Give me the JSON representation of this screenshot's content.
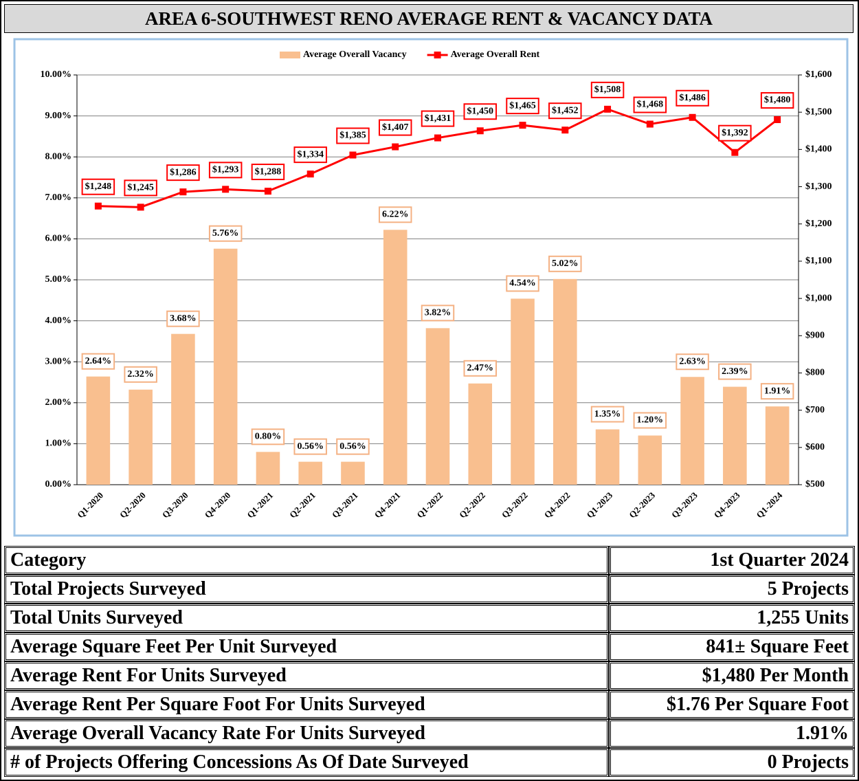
{
  "chart_data": {
    "type": "bar-line",
    "title": "AREA 6-SOUTHWEST RENO AVERAGE RENT & VACANCY DATA",
    "categories": [
      "Q1-2020",
      "Q2-2020",
      "Q3-2020",
      "Q4-2020",
      "Q1-2021",
      "Q2-2021",
      "Q3-2021",
      "Q4-2021",
      "Q1-2022",
      "Q2-2022",
      "Q3-2022",
      "Q4-2022",
      "Q1-2023",
      "Q2-2023",
      "Q3-2023",
      "Q4-2023",
      "Q1-2024"
    ],
    "series": [
      {
        "name": "Average Overall Vacancy",
        "type": "bar",
        "color": "#f9bf8f",
        "label_border": "#f4b183",
        "values": [
          2.64,
          2.32,
          3.68,
          5.76,
          0.8,
          0.56,
          0.56,
          6.22,
          3.82,
          2.47,
          4.54,
          5.02,
          1.35,
          1.2,
          2.63,
          2.39,
          1.91
        ],
        "value_labels": [
          "2.64%",
          "2.32%",
          "3.68%",
          "5.76%",
          "0.80%",
          "0.56%",
          "0.56%",
          "6.22%",
          "3.82%",
          "2.47%",
          "4.54%",
          "5.02%",
          "1.35%",
          "1.20%",
          "2.63%",
          "2.39%",
          "1.91%"
        ]
      },
      {
        "name": "Average Overall Rent",
        "type": "line",
        "axis": "y2",
        "color": "#ff0000",
        "label_border": "#ff0000",
        "values": [
          1248,
          1245,
          1286,
          1293,
          1288,
          1334,
          1385,
          1407,
          1431,
          1450,
          1465,
          1452,
          1508,
          1468,
          1486,
          1392,
          1480
        ],
        "value_labels": [
          "$1,248",
          "$1,245",
          "$1,286",
          "$1,293",
          "$1,288",
          "$1,334",
          "$1,385",
          "$1,407",
          "$1,431",
          "$1,450",
          "$1,465",
          "$1,452",
          "$1,508",
          "$1,468",
          "$1,486",
          "$1,392",
          "$1,480"
        ]
      }
    ],
    "ylim": [
      0,
      10
    ],
    "yticks": [
      {
        "value": 0,
        "label": "0.00%"
      },
      {
        "value": 1,
        "label": "1.00%"
      },
      {
        "value": 2,
        "label": "2.00%"
      },
      {
        "value": 3,
        "label": "3.00%"
      },
      {
        "value": 4,
        "label": "4.00%"
      },
      {
        "value": 5,
        "label": "5.00%"
      },
      {
        "value": 6,
        "label": "6.00%"
      },
      {
        "value": 7,
        "label": "7.00%"
      },
      {
        "value": 8,
        "label": "8.00%"
      },
      {
        "value": 9,
        "label": "9.00%"
      },
      {
        "value": 10,
        "label": "10.00%"
      }
    ],
    "y2lim": [
      500,
      1600
    ],
    "y2ticks": [
      {
        "value": 500,
        "label": "$500"
      },
      {
        "value": 600,
        "label": "$600"
      },
      {
        "value": 700,
        "label": "$700"
      },
      {
        "value": 800,
        "label": "$800"
      },
      {
        "value": 900,
        "label": "$900"
      },
      {
        "value": 1000,
        "label": "$1,000"
      },
      {
        "value": 1100,
        "label": "$1,100"
      },
      {
        "value": 1200,
        "label": "$1,200"
      },
      {
        "value": 1300,
        "label": "$1,300"
      },
      {
        "value": 1400,
        "label": "$1,400"
      },
      {
        "value": 1500,
        "label": "$1,500"
      },
      {
        "value": 1600,
        "label": "$1,600"
      }
    ],
    "grid": true,
    "legend": "top"
  },
  "table": {
    "header": [
      "Category",
      "1st Quarter 2024"
    ],
    "rows": [
      [
        "Total Projects Surveyed",
        "5 Projects"
      ],
      [
        "Total Units Surveyed",
        "1,255 Units"
      ],
      [
        "Average Square Feet Per Unit Surveyed",
        "841± Square Feet"
      ],
      [
        "Average Rent For Units Surveyed",
        "$1,480 Per Month"
      ],
      [
        "Average Rent Per Square Foot For Units Surveyed",
        "$1.76 Per Square Foot"
      ],
      [
        "Average Overall Vacancy Rate For Units Surveyed",
        "1.91%"
      ],
      [
        "# of Projects Offering Concessions As Of Date Surveyed",
        "0 Projects"
      ]
    ]
  }
}
